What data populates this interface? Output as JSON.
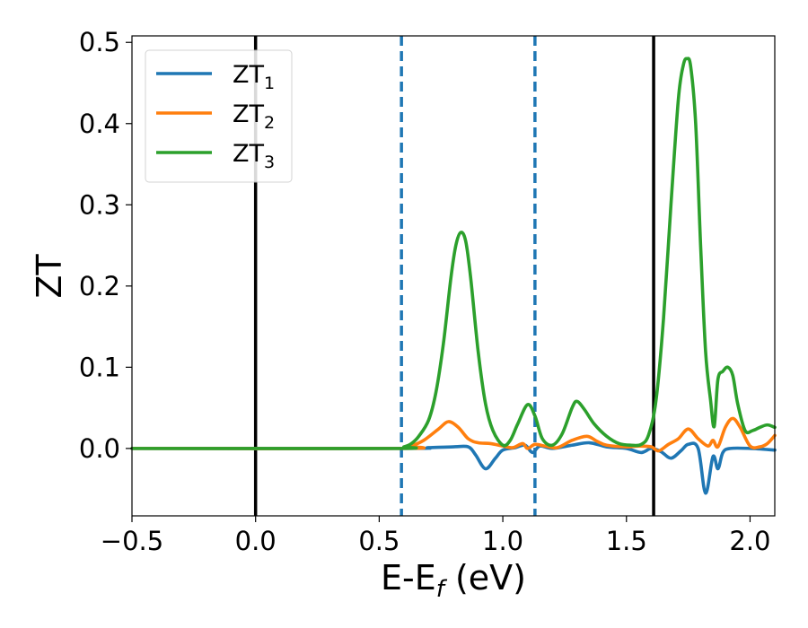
{
  "chart_data": {
    "type": "line",
    "title": "",
    "xlabel": "E-E",
    "xlabel_sub": "f",
    "xlabel_unit": " (eV)",
    "ylabel": "ZT",
    "xlim": [
      -0.5,
      2.1
    ],
    "ylim": [
      -0.083,
      0.508
    ],
    "xticks": [
      -0.5,
      0.0,
      0.5,
      1.0,
      1.5,
      2.0
    ],
    "xtick_labels": [
      "−0.5",
      "0.0",
      "0.5",
      "1.0",
      "1.5",
      "2.0"
    ],
    "yticks": [
      0.0,
      0.1,
      0.2,
      0.3,
      0.4,
      0.5
    ],
    "ytick_labels": [
      "0.0",
      "0.1",
      "0.2",
      "0.3",
      "0.4",
      "0.5"
    ],
    "grid": false,
    "legend_position": "top-left",
    "vertical_lines": [
      {
        "x": 0.0,
        "style": "solid",
        "color": "#000000"
      },
      {
        "x": 1.61,
        "style": "solid",
        "color": "#000000"
      },
      {
        "x": 0.59,
        "style": "dashed",
        "color": "#1f77b4"
      },
      {
        "x": 1.13,
        "style": "dashed",
        "color": "#1f77b4"
      }
    ],
    "series": [
      {
        "name": "ZT",
        "subscript": "1",
        "color": "#1f77b4",
        "points": [
          [
            -0.5,
            0.0
          ],
          [
            0.59,
            0.0
          ],
          [
            0.7,
            0.001
          ],
          [
            0.8,
            0.002
          ],
          [
            0.86,
            0.002
          ],
          [
            0.89,
            -0.008
          ],
          [
            0.93,
            -0.025
          ],
          [
            0.97,
            -0.012
          ],
          [
            1.0,
            -0.002
          ],
          [
            1.05,
            0.001
          ],
          [
            1.09,
            0.004
          ],
          [
            1.12,
            -0.005
          ],
          [
            1.15,
            0.003
          ],
          [
            1.2,
            0.0
          ],
          [
            1.28,
            0.004
          ],
          [
            1.35,
            0.007
          ],
          [
            1.42,
            0.002
          ],
          [
            1.5,
            0.0
          ],
          [
            1.56,
            -0.005
          ],
          [
            1.6,
            0.0
          ],
          [
            1.64,
            -0.004
          ],
          [
            1.68,
            -0.012
          ],
          [
            1.72,
            -0.003
          ],
          [
            1.75,
            0.005
          ],
          [
            1.79,
            0.0
          ],
          [
            1.82,
            -0.055
          ],
          [
            1.85,
            -0.01
          ],
          [
            1.87,
            -0.025
          ],
          [
            1.89,
            -0.005
          ],
          [
            1.92,
            0.0
          ],
          [
            2.0,
            0.0
          ],
          [
            2.1,
            -0.002
          ]
        ]
      },
      {
        "name": "ZT",
        "subscript": "2",
        "color": "#ff7f0e",
        "points": [
          [
            -0.5,
            0.0
          ],
          [
            0.59,
            0.0
          ],
          [
            0.63,
            0.003
          ],
          [
            0.68,
            0.01
          ],
          [
            0.74,
            0.024
          ],
          [
            0.78,
            0.033
          ],
          [
            0.82,
            0.026
          ],
          [
            0.86,
            0.012
          ],
          [
            0.9,
            0.007
          ],
          [
            0.95,
            0.006
          ],
          [
            1.0,
            0.003
          ],
          [
            1.04,
            0.001
          ],
          [
            1.08,
            0.006
          ],
          [
            1.1,
            0.0
          ],
          [
            1.13,
            0.005
          ],
          [
            1.17,
            0.003
          ],
          [
            1.22,
            0.001
          ],
          [
            1.28,
            0.01
          ],
          [
            1.34,
            0.015
          ],
          [
            1.38,
            0.009
          ],
          [
            1.42,
            0.004
          ],
          [
            1.5,
            0.002
          ],
          [
            1.55,
            0.003
          ],
          [
            1.6,
            0.002
          ],
          [
            1.63,
            -0.003
          ],
          [
            1.67,
            0.005
          ],
          [
            1.71,
            0.012
          ],
          [
            1.75,
            0.024
          ],
          [
            1.79,
            0.012
          ],
          [
            1.83,
            0.003
          ],
          [
            1.85,
            0.01
          ],
          [
            1.87,
            0.002
          ],
          [
            1.9,
            0.026
          ],
          [
            1.93,
            0.037
          ],
          [
            1.96,
            0.026
          ],
          [
            2.0,
            0.003
          ],
          [
            2.04,
            0.002
          ],
          [
            2.07,
            0.006
          ],
          [
            2.1,
            0.016
          ]
        ]
      },
      {
        "name": "ZT",
        "subscript": "3",
        "color": "#2ca02c",
        "points": [
          [
            -0.5,
            0.0
          ],
          [
            0.56,
            0.0
          ],
          [
            0.6,
            0.002
          ],
          [
            0.63,
            0.006
          ],
          [
            0.66,
            0.015
          ],
          [
            0.7,
            0.035
          ],
          [
            0.73,
            0.07
          ],
          [
            0.76,
            0.13
          ],
          [
            0.79,
            0.21
          ],
          [
            0.81,
            0.25
          ],
          [
            0.83,
            0.266
          ],
          [
            0.85,
            0.255
          ],
          [
            0.87,
            0.21
          ],
          [
            0.9,
            0.12
          ],
          [
            0.93,
            0.055
          ],
          [
            0.96,
            0.022
          ],
          [
            1.0,
            0.004
          ],
          [
            1.03,
            0.01
          ],
          [
            1.06,
            0.03
          ],
          [
            1.1,
            0.054
          ],
          [
            1.13,
            0.04
          ],
          [
            1.16,
            0.012
          ],
          [
            1.2,
            0.004
          ],
          [
            1.24,
            0.018
          ],
          [
            1.28,
            0.05
          ],
          [
            1.3,
            0.058
          ],
          [
            1.33,
            0.048
          ],
          [
            1.37,
            0.03
          ],
          [
            1.42,
            0.015
          ],
          [
            1.47,
            0.006
          ],
          [
            1.52,
            0.004
          ],
          [
            1.56,
            0.005
          ],
          [
            1.59,
            0.017
          ],
          [
            1.62,
            0.06
          ],
          [
            1.65,
            0.16
          ],
          [
            1.68,
            0.3
          ],
          [
            1.71,
            0.43
          ],
          [
            1.73,
            0.472
          ],
          [
            1.745,
            0.48
          ],
          [
            1.76,
            0.47
          ],
          [
            1.78,
            0.4
          ],
          [
            1.8,
            0.25
          ],
          [
            1.82,
            0.12
          ],
          [
            1.84,
            0.06
          ],
          [
            1.855,
            0.027
          ],
          [
            1.87,
            0.085
          ],
          [
            1.89,
            0.095
          ],
          [
            1.91,
            0.1
          ],
          [
            1.93,
            0.09
          ],
          [
            1.95,
            0.055
          ],
          [
            1.98,
            0.022
          ],
          [
            2.01,
            0.022
          ],
          [
            2.04,
            0.026
          ],
          [
            2.07,
            0.029
          ],
          [
            2.1,
            0.026
          ]
        ]
      }
    ]
  }
}
